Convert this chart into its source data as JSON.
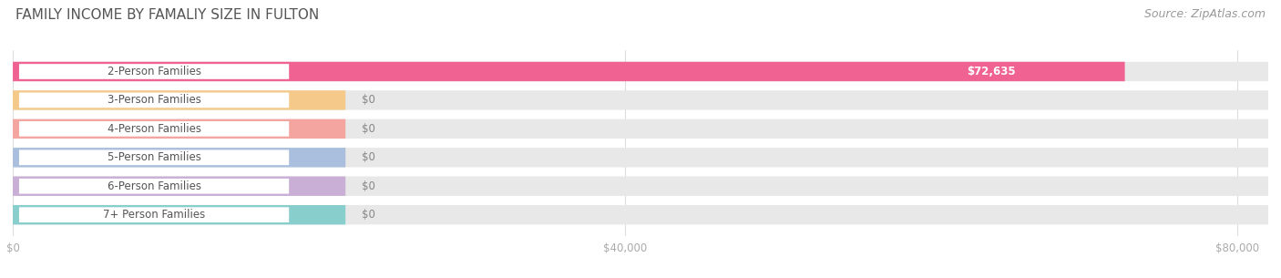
{
  "title": "FAMILY INCOME BY FAMALIY SIZE IN FULTON",
  "source": "Source: ZipAtlas.com",
  "categories": [
    "2-Person Families",
    "3-Person Families",
    "4-Person Families",
    "5-Person Families",
    "6-Person Families",
    "7+ Person Families"
  ],
  "values": [
    72635,
    0,
    0,
    0,
    0,
    0
  ],
  "bar_colors": [
    "#F06292",
    "#F5C98A",
    "#F4A5A0",
    "#AABFDD",
    "#C9AED6",
    "#87CECC"
  ],
  "value_labels": [
    "$72,635",
    "$0",
    "$0",
    "$0",
    "$0",
    "$0"
  ],
  "xlim": [
    0,
    82000
  ],
  "xticks": [
    0,
    40000,
    80000
  ],
  "xtick_labels": [
    "$0",
    "$40,000",
    "$80,000"
  ],
  "title_fontsize": 11,
  "source_fontsize": 9,
  "bar_label_fontsize": 8.5,
  "value_label_fontsize": 8.5,
  "background_color": "#ffffff",
  "bar_bg_color": "#e8e8e8",
  "figsize": [
    14.06,
    3.05
  ],
  "dpi": 100
}
